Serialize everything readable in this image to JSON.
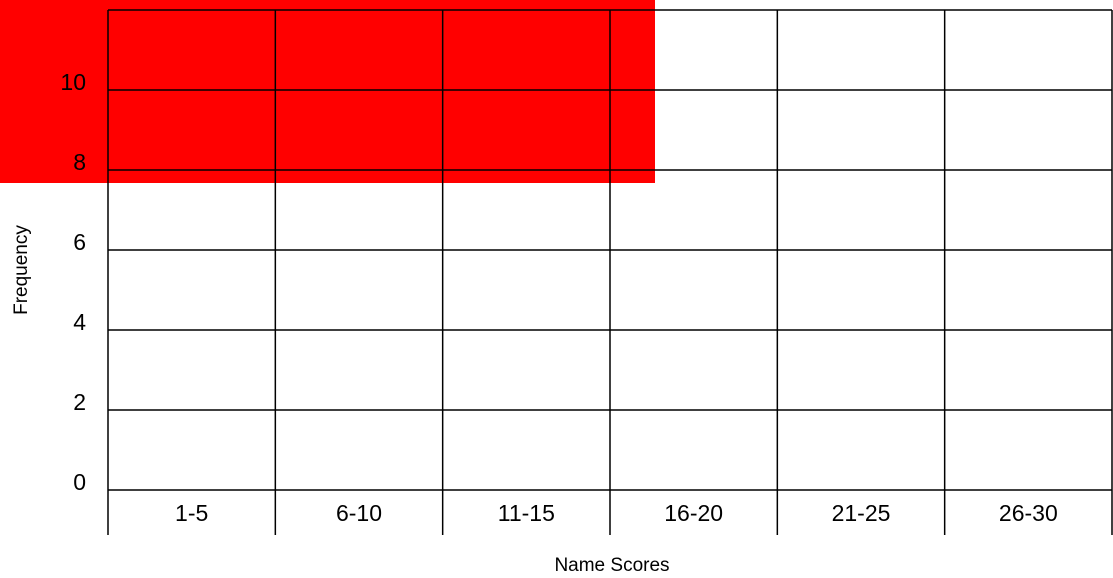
{
  "chart_data": {
    "type": "bar",
    "x_label": "Name Scores",
    "y_label": "Frequency",
    "categories": [
      "1-5",
      "6-10",
      "11-15",
      "16-20",
      "21-25",
      "26-30"
    ],
    "ylim": [
      0,
      12
    ],
    "yticks": [
      0,
      2,
      4,
      6,
      8,
      10
    ],
    "grid": true
  }
}
